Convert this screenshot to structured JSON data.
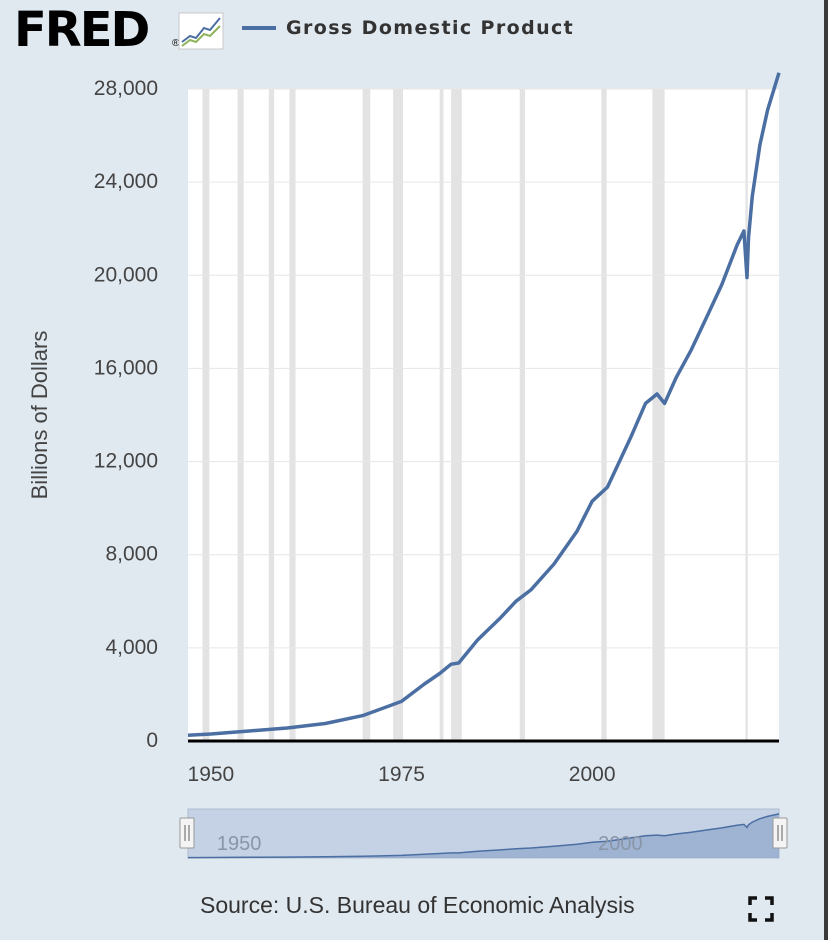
{
  "header": {
    "logo_text": "FRED",
    "logo_mark": "®",
    "legend_label": "Gross Domestic Product"
  },
  "footer": {
    "source": "Source: U.S. Bureau of Economic Analysis"
  },
  "icons": {
    "logo_chart": "fred-sparkline-icon",
    "fullscreen": "fullscreen-icon",
    "handle": "slider-handle-icon"
  },
  "colors": {
    "series": "#4b6fa3",
    "recession": "#e3e3e3",
    "background": "#e1e9f0",
    "plot": "#ffffff"
  },
  "chart_data": {
    "type": "line",
    "ylabel": "Billions of Dollars",
    "xlabel": "",
    "title": "",
    "xlim": [
      1947.0,
      2024.5
    ],
    "ylim": [
      0,
      28000
    ],
    "xticks": [
      1950,
      1975,
      2000
    ],
    "xtick_labels": [
      "1950",
      "1975",
      "2000"
    ],
    "yticks": [
      0,
      4000,
      8000,
      12000,
      16000,
      20000,
      24000,
      28000
    ],
    "ytick_labels": [
      "0",
      "4,000",
      "8,000",
      "12,000",
      "16,000",
      "20,000",
      "24,000",
      "28,000"
    ],
    "grid": "horizontal",
    "recessions": [
      [
        1948.9,
        1949.8
      ],
      [
        1953.5,
        1954.3
      ],
      [
        1957.6,
        1958.3
      ],
      [
        1960.3,
        1961.1
      ],
      [
        1969.9,
        1970.9
      ],
      [
        1973.9,
        1975.2
      ],
      [
        1980.0,
        1980.5
      ],
      [
        1981.5,
        1982.9
      ],
      [
        1990.5,
        1991.2
      ],
      [
        2001.2,
        2001.9
      ],
      [
        2007.9,
        2009.5
      ],
      [
        2020.1,
        2020.4
      ]
    ],
    "series": [
      {
        "name": "Gross Domestic Product",
        "x": [
          1947,
          1950,
          1955,
          1960,
          1965,
          1970,
          1975,
          1978,
          1980,
          1981.5,
          1982.5,
          1985,
          1988,
          1990,
          1992,
          1995,
          1998,
          2000,
          2002,
          2005,
          2007,
          2008.5,
          2009.5,
          2011,
          2013,
          2015,
          2017,
          2019,
          2019.9,
          2020.3,
          2020.5,
          2021,
          2022,
          2023,
          2024.5
        ],
        "y": [
          250,
          300,
          430,
          560,
          750,
          1100,
          1700,
          2450,
          2900,
          3300,
          3350,
          4350,
          5300,
          6000,
          6500,
          7600,
          9000,
          10300,
          10900,
          13000,
          14500,
          14900,
          14500,
          15600,
          16800,
          18200,
          19600,
          21300,
          21900,
          19900,
          21600,
          23400,
          25600,
          27100,
          28700
        ]
      }
    ],
    "navigator": {
      "labels": [
        "1950",
        "2000"
      ]
    }
  }
}
